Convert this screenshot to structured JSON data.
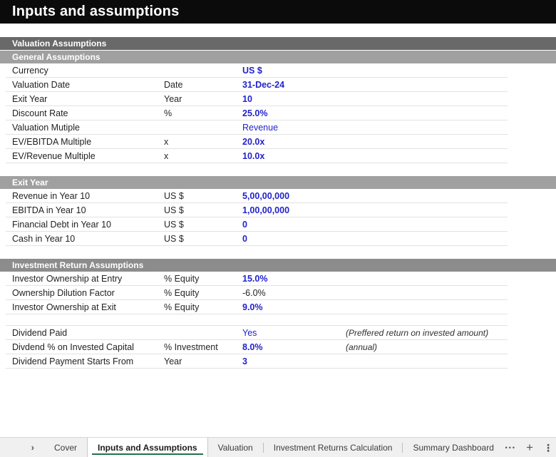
{
  "app": {
    "title": "Inputs and assumptions"
  },
  "colors": {
    "input_blue": "#2222CC",
    "section_bar_dark": "#696969",
    "section_bar_light": "#a0a0a0",
    "section_bar_mid": "#8c8c8c",
    "active_tab_underline_green": "#1e7345"
  },
  "sections": [
    {
      "bars": [
        {
          "label": "Valuation Assumptions"
        },
        {
          "label": "General Assumptions"
        }
      ],
      "rows": [
        {
          "label": "Currency",
          "unit": "",
          "value": "US $"
        },
        {
          "label": "Valuation Date",
          "unit": "Date",
          "value": "31-Dec-24"
        },
        {
          "label": "Exit Year",
          "unit": "Year",
          "value": "10"
        },
        {
          "label": "Discount Rate",
          "unit": "%",
          "value": "25.0%"
        },
        {
          "label": "Valuation Mutiple",
          "unit": "",
          "value": "Revenue"
        },
        {
          "label": "EV/EBITDA Multiple",
          "unit": "x",
          "value": "20.0x"
        },
        {
          "label": "EV/Revenue Multiple",
          "unit": "x",
          "value": "10.0x"
        }
      ]
    },
    {
      "bars": [
        {
          "label": "Exit Year"
        }
      ],
      "rows": [
        {
          "label": "Revenue in Year 10",
          "unit": "US $",
          "value": "5,00,00,000"
        },
        {
          "label": "EBITDA in Year 10",
          "unit": "US $",
          "value": "1,00,00,000"
        },
        {
          "label": "Financial Debt in Year 10",
          "unit": "US $",
          "value": "0"
        },
        {
          "label": "Cash in Year 10",
          "unit": "US $",
          "value": "0"
        }
      ]
    },
    {
      "bars": [
        {
          "label": "Investment Return Assumptions"
        }
      ],
      "rows": [
        {
          "label": "Investor Ownership at Entry",
          "unit": "% Equity",
          "value": "15.0%"
        },
        {
          "label": "Ownership Dilution Factor",
          "unit": "% Equity",
          "value": "-6.0%"
        },
        {
          "label": "Investor Ownership at Exit",
          "unit": "% Equity",
          "value": "9.0%"
        },
        {
          "label": "Dividend Paid",
          "unit": "",
          "value": "Yes",
          "note": "(Preffered return on invested amount)"
        },
        {
          "label": "Divdend % on Invested Capital",
          "unit": "% Investment",
          "value": "8.0%",
          "note": "(annual)"
        },
        {
          "label": "Dividend Payment Starts From",
          "unit": "Year",
          "value": "3"
        }
      ]
    }
  ],
  "sheet_tabs": {
    "nav_next": "›",
    "tabs": [
      {
        "label": "Cover"
      },
      {
        "label": "Inputs and Assumptions",
        "active": "true"
      },
      {
        "label": "Valuation"
      },
      {
        "label": "Investment Returns Calculation"
      },
      {
        "label": "Summary Dashboard"
      }
    ],
    "overflow_label": "•••",
    "add_label": "+",
    "more_label": "⋮"
  }
}
